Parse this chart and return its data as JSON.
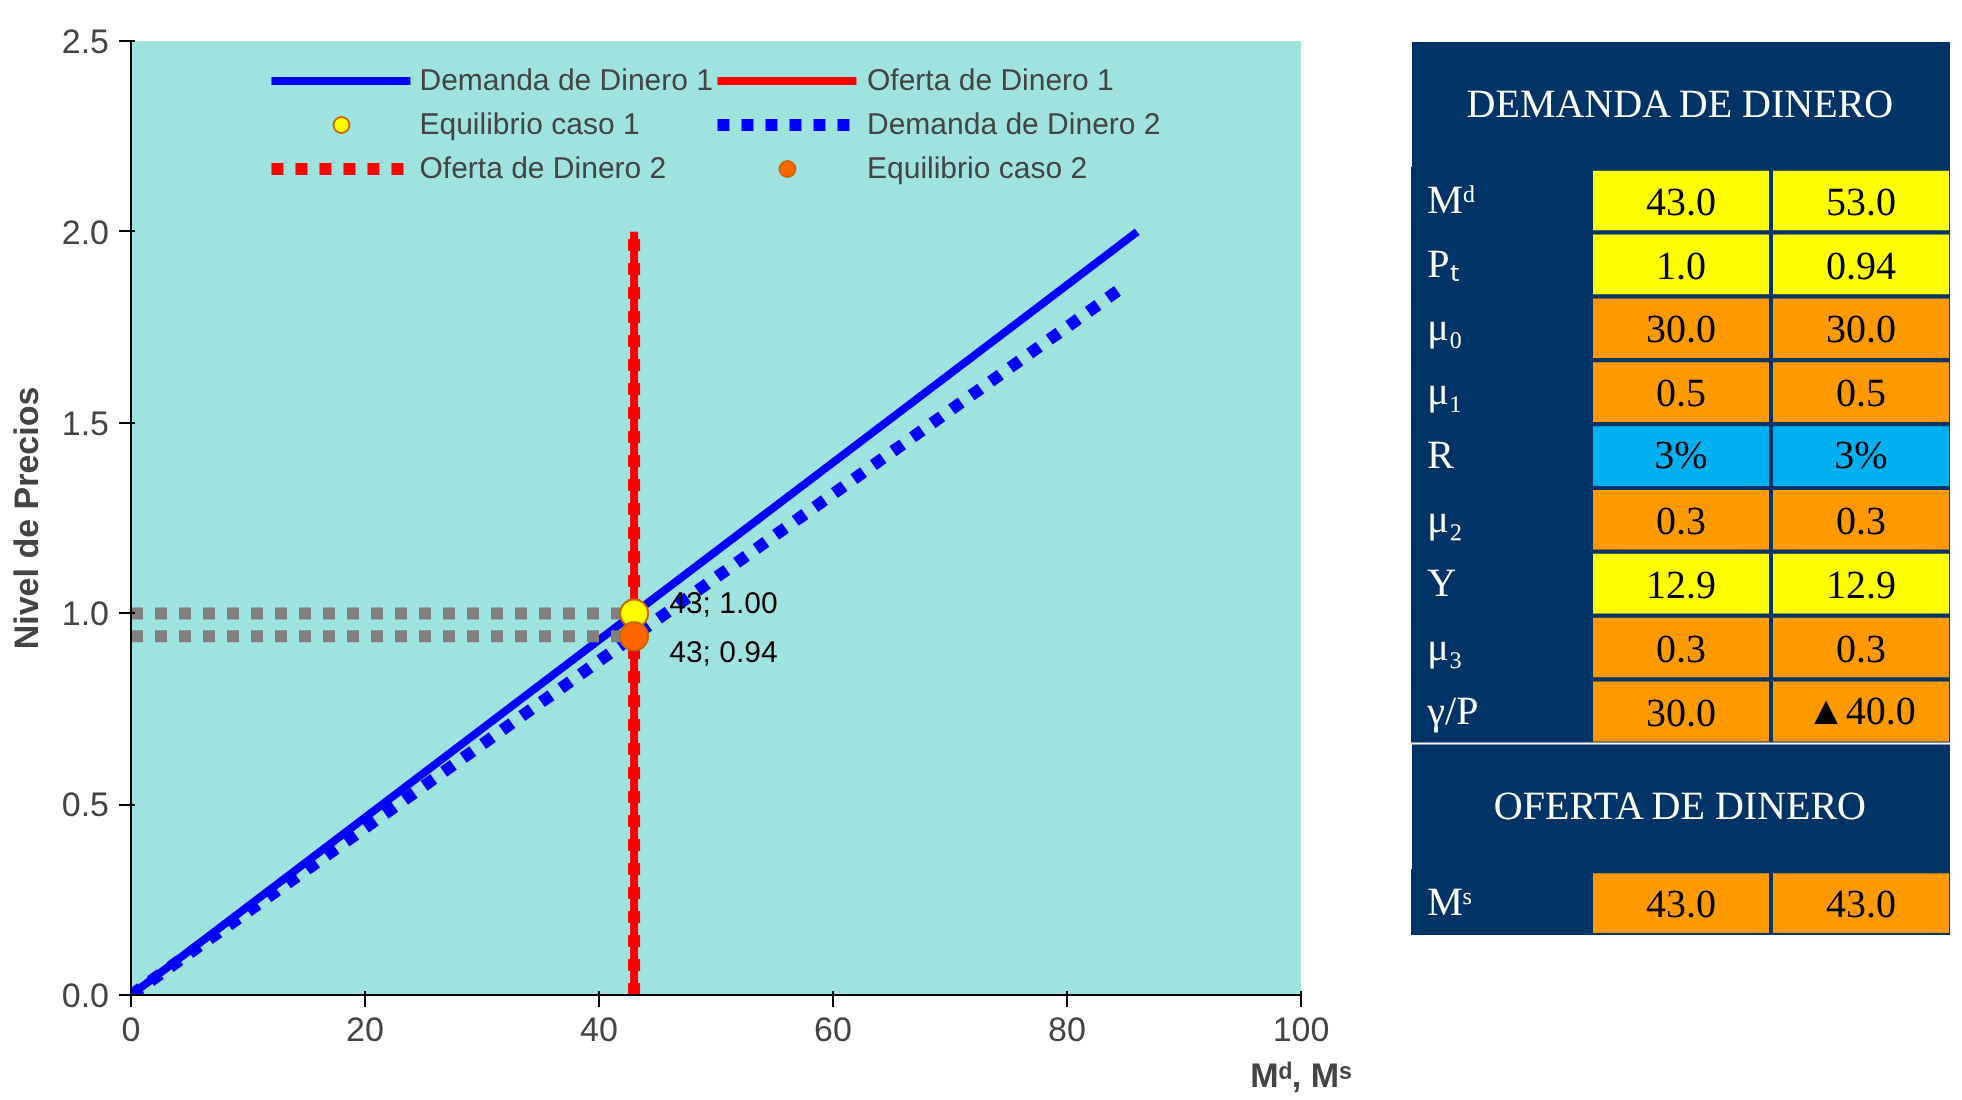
{
  "chart_data": [
    {
      "type": "line",
      "xlabel": "Mᵈ, Mˢ",
      "ylabel": "Nivel de Precios",
      "xlim": [
        0,
        100
      ],
      "xticks": [
        0,
        20,
        40,
        60,
        80,
        100
      ],
      "ylim": [
        0,
        2.5
      ],
      "yticks": [
        {
          "value": 0,
          "label": "0.0"
        },
        0.5,
        {
          "value": 1,
          "label": "1.0"
        },
        1.5,
        {
          "value": 2,
          "label": "2.0"
        },
        2.5
      ],
      "legend": "top",
      "series": [
        {
          "name": "Demanda de Dinero 1",
          "color": "#0000ff",
          "x": [
            0,
            86
          ],
          "values": [
            0,
            2.0
          ],
          "line_style": "solid"
        },
        {
          "name": "Oferta de Dinero 1",
          "color": "#ff0000",
          "x": [
            43,
            43
          ],
          "values": [
            0,
            2.0
          ],
          "line_style": "solid"
        },
        {
          "name": "Equilibrio caso 1",
          "type": "scatter",
          "color": "#ffff00",
          "x": [
            43
          ],
          "values": [
            1.0
          ],
          "marker": "circle"
        },
        {
          "name": "Demanda de Dinero 2",
          "color": "#0000ff",
          "x": [
            0,
            85
          ],
          "values": [
            0,
            1.86
          ],
          "line_style": "dashed"
        },
        {
          "name": "Oferta de Dinero 2",
          "color": "#ff0000",
          "x": [
            43,
            43
          ],
          "values": [
            0,
            2.0
          ],
          "line_style": "dashed"
        },
        {
          "name": "Equilibrio caso 2",
          "type": "scatter",
          "color": "#ff6600",
          "x": [
            43
          ],
          "values": [
            0.94
          ],
          "marker": "circle"
        },
        {
          "color": "#808080",
          "x": [
            0,
            43
          ],
          "values": [
            1.0,
            1.0
          ],
          "line_style": "dashed"
        },
        {
          "color": "#808080",
          "x": [
            0,
            43
          ],
          "values": [
            0.94,
            0.94
          ],
          "line_style": "dashed"
        }
      ],
      "annotations": [
        {
          "text": "43; 1.00",
          "x": 43,
          "y": 1.0
        },
        {
          "text": "43; 0.94",
          "x": 43,
          "y": 0.94
        }
      ]
    },
    {
      "type": "other",
      "title": "DEMANDA DE DINERO",
      "subtitle": "OFERTA DE DINERO",
      "annotations": [
        "Mᵈ",
        "43.0",
        "53.0",
        "Pₜ",
        "1.0",
        "0.94",
        "μ₀",
        "30.0",
        "30.0",
        "μ₁",
        "0.5",
        "0.5",
        "R",
        "3%",
        "3%",
        "μ₂",
        "0.3",
        "0.3",
        "Y",
        "12.9",
        "12.9",
        "μ₃",
        "0.3",
        "0.3",
        "γ/P",
        "30.0",
        "▲40.0",
        "Mˢ",
        "43.0",
        "43.0"
      ],
      "colors": [
        "#003366",
        "#ffff00",
        "#ffff00",
        "#003366",
        "#ffff00",
        "#ffff00",
        "#003366",
        "#ff9900",
        "#ff9900",
        "#003366",
        "#ff9900",
        "#ff9900",
        "#003366",
        "#00b0f0",
        "#00b0f0",
        "#003366",
        "#ff9900",
        "#ff9900",
        "#003366",
        "#ffff00",
        "#ffff00",
        "#003366",
        "#ff9900",
        "#ff9900",
        "#003366",
        "#ff9900",
        "#ff9900",
        "#003366",
        "#ff9900",
        "#ff9900"
      ]
    }
  ]
}
